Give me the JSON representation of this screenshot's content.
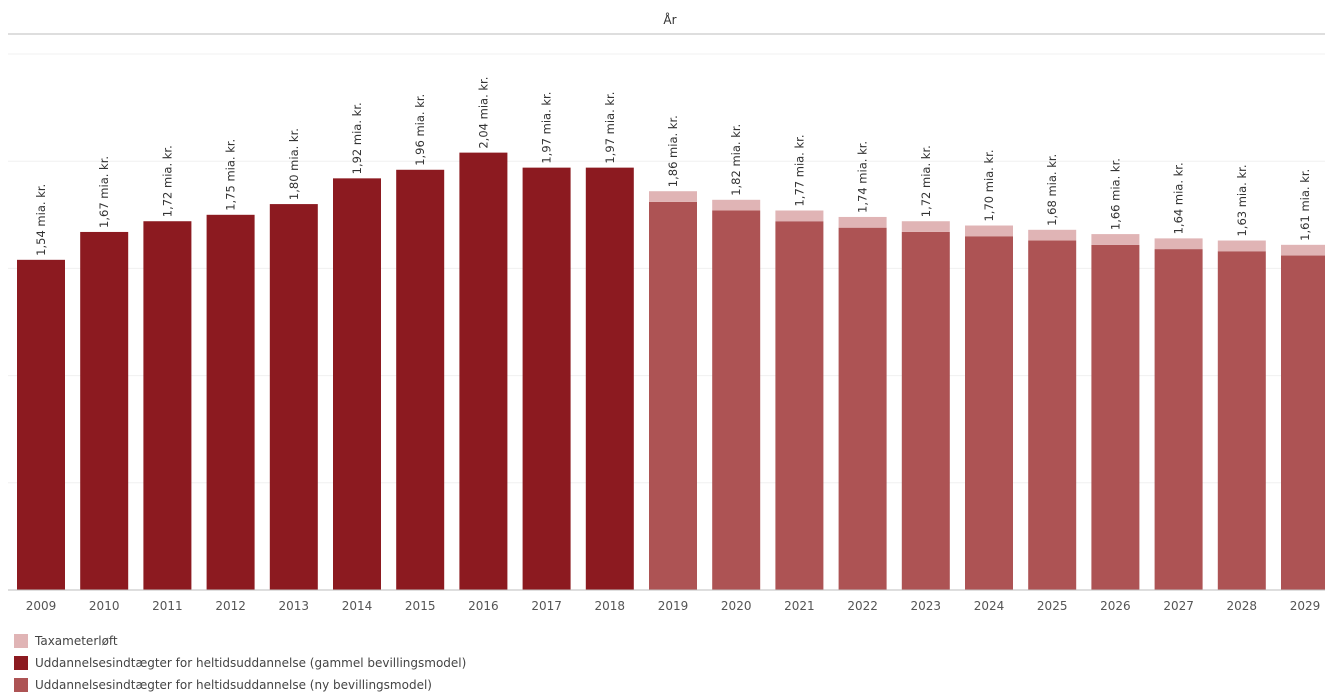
{
  "chart_data": {
    "type": "bar",
    "stacked": true,
    "xlabel": "År",
    "categories": [
      "2009",
      "2010",
      "2011",
      "2012",
      "2013",
      "2014",
      "2015",
      "2016",
      "2017",
      "2018",
      "2019",
      "2020",
      "2021",
      "2022",
      "2023",
      "2024",
      "2025",
      "2026",
      "2027",
      "2028",
      "2029"
    ],
    "totals": [
      1.54,
      1.67,
      1.72,
      1.75,
      1.8,
      1.92,
      1.96,
      2.04,
      1.97,
      1.97,
      1.86,
      1.82,
      1.77,
      1.74,
      1.72,
      1.7,
      1.68,
      1.66,
      1.64,
      1.63,
      1.61
    ],
    "total_labels": [
      "1,54 mia. kr.",
      "1,67 mia. kr.",
      "1,72 mia. kr.",
      "1,75 mia. kr.",
      "1,80 mia. kr.",
      "1,92 mia. kr.",
      "1,96 mia. kr.",
      "2,04 mia. kr.",
      "1,97 mia. kr.",
      "1,97 mia. kr.",
      "1,86 mia. kr.",
      "1,82 mia. kr.",
      "1,77 mia. kr.",
      "1,74 mia. kr.",
      "1,72 mia. kr.",
      "1,70 mia. kr.",
      "1,68 mia. kr.",
      "1,66 mia. kr.",
      "1,64 mia. kr.",
      "1,63 mia. kr.",
      "1,61 mia. kr."
    ],
    "series": [
      {
        "name": "Uddannelsesindtægter for heltidsuddannelse (gammel bevillingsmodel)",
        "color": "#8c1a20",
        "values": [
          1.54,
          1.67,
          1.72,
          1.75,
          1.8,
          1.92,
          1.96,
          2.04,
          1.97,
          1.97,
          0,
          0,
          0,
          0,
          0,
          0,
          0,
          0,
          0,
          0,
          0
        ]
      },
      {
        "name": "Uddannelsesindtægter for heltidsuddannelse (ny bevillingsmodel)",
        "color": "#ad5354",
        "values": [
          0,
          0,
          0,
          0,
          0,
          0,
          0,
          0,
          0,
          0,
          1.81,
          1.77,
          1.72,
          1.69,
          1.67,
          1.65,
          1.63,
          1.61,
          1.59,
          1.58,
          1.56
        ]
      },
      {
        "name": "Taxameterløft",
        "color": "#e0b4b5",
        "values": [
          0,
          0,
          0,
          0,
          0,
          0,
          0,
          0,
          0,
          0,
          0.05,
          0.05,
          0.05,
          0.05,
          0.05,
          0.05,
          0.05,
          0.05,
          0.05,
          0.05,
          0.05
        ]
      }
    ],
    "ylim": [
      0,
      2.5
    ],
    "grid": true,
    "legend_position": "bottom-left",
    "legend_order": [
      "Taxameterløft",
      "Uddannelsesindtægter for heltidsuddannelse (gammel bevillingsmodel)",
      "Uddannelsesindtægter for heltidsuddannelse (ny bevillingsmodel)"
    ]
  }
}
